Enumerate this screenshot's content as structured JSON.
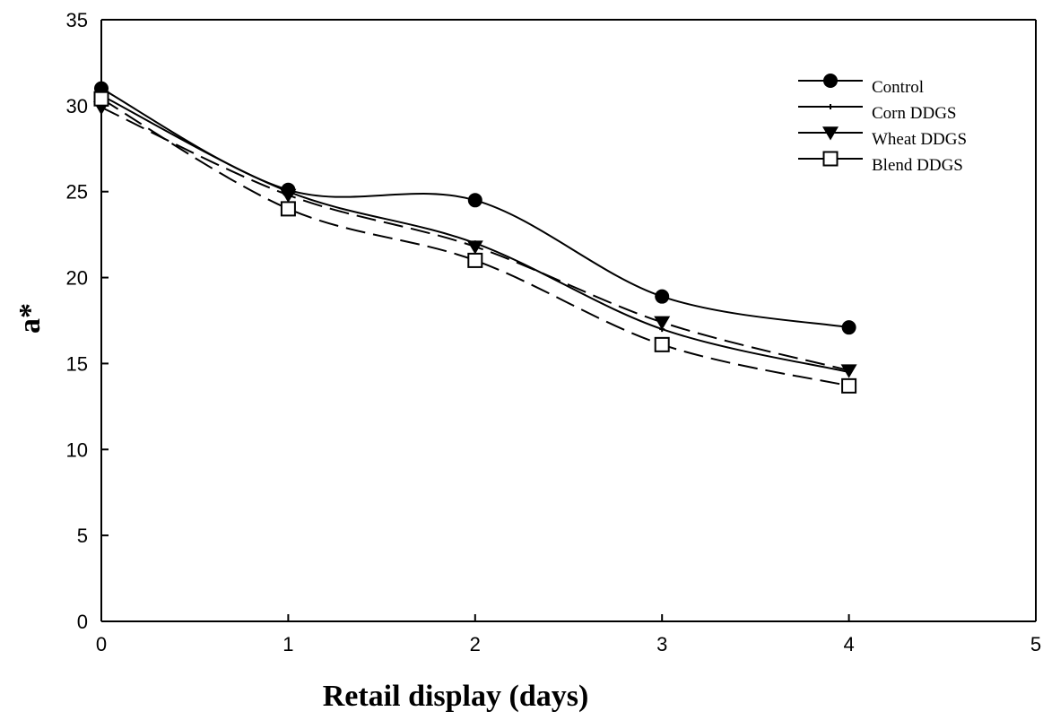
{
  "chart_data": {
    "type": "line",
    "title": "",
    "xlabel": "Retail display (days)",
    "ylabel": "a*",
    "xlim": [
      0,
      5
    ],
    "ylim": [
      0,
      35
    ],
    "xticks": [
      0,
      1,
      2,
      3,
      4,
      5
    ],
    "yticks": [
      0,
      5,
      10,
      15,
      20,
      25,
      30,
      35
    ],
    "grid": false,
    "legend_position": "top-right",
    "x": [
      0,
      1,
      2,
      3,
      4
    ],
    "series": [
      {
        "name": "Control",
        "values": [
          31.0,
          25.1,
          24.5,
          18.9,
          17.1
        ],
        "marker": "filled-circle",
        "line": "solid",
        "color": "#000000"
      },
      {
        "name": "Corn DDGS",
        "values": [
          30.6,
          25.0,
          22.0,
          17.0,
          14.5
        ],
        "marker": "small-star",
        "line": "solid",
        "color": "#000000"
      },
      {
        "name": "Wheat DDGS",
        "values": [
          29.9,
          24.8,
          21.8,
          17.4,
          14.6
        ],
        "marker": "filled-triangle-down",
        "line": "dashed",
        "color": "#000000"
      },
      {
        "name": "Blend DDGS",
        "values": [
          30.4,
          24.0,
          21.0,
          16.1,
          13.7
        ],
        "marker": "open-square",
        "line": "dashed",
        "color": "#000000"
      }
    ]
  }
}
